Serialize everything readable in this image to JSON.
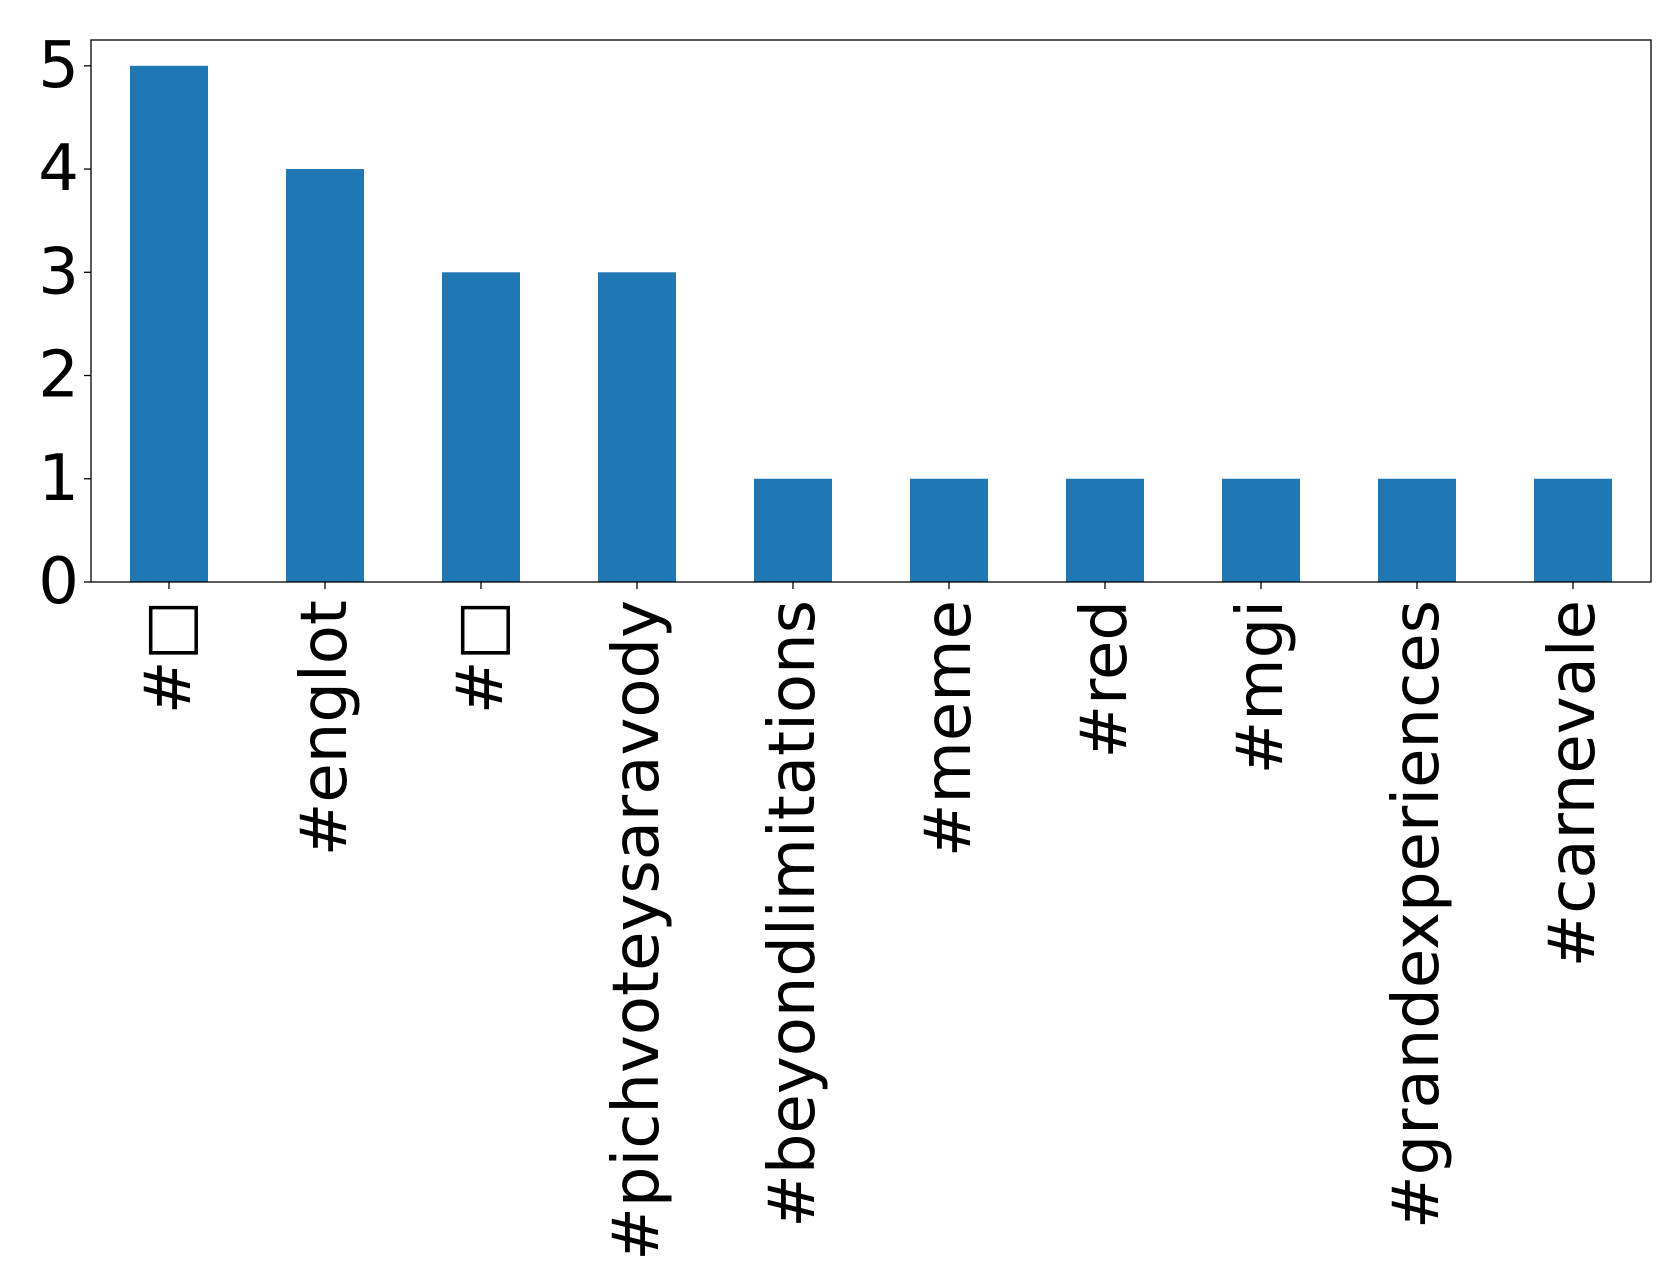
{
  "chart_data": {
    "type": "bar",
    "title": "",
    "xlabel": "",
    "ylabel": "",
    "categories": [
      "#□",
      "#englot",
      "#□",
      "#pichvoteysaravody",
      "#beyondlimitations",
      "#meme",
      "#red",
      "#mgi",
      "#grandexperiences",
      "#carnevale"
    ],
    "values": [
      5,
      4,
      3,
      3,
      1,
      1,
      1,
      1,
      1,
      1
    ],
    "ylim": [
      0,
      5.25
    ],
    "yticks": [
      0,
      1,
      2,
      3,
      4,
      5
    ],
    "bar_color": "#1f77b4",
    "grid": false,
    "legend": "none",
    "xtick_rotation": "vertical"
  }
}
